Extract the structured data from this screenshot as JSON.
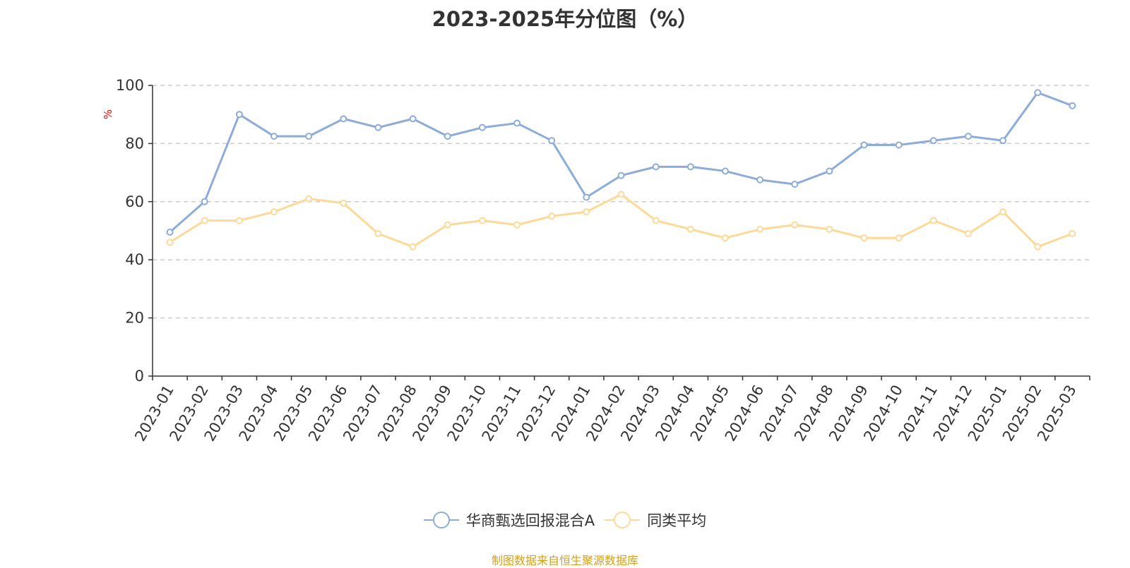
{
  "chart_data": {
    "type": "line",
    "title": "2023-2025年分位图（%）",
    "ylabel": "%",
    "ylim": [
      0,
      100
    ],
    "yticks": [
      "0",
      "20",
      "40",
      "60",
      "80",
      "100"
    ],
    "grid": true,
    "legend_position": "bottom",
    "categories": [
      "2023-01",
      "2023-02",
      "2023-03",
      "2023-04",
      "2023-05",
      "2023-06",
      "2023-07",
      "2023-08",
      "2023-09",
      "2023-10",
      "2023-11",
      "2023-12",
      "2024-01",
      "2024-02",
      "2024-03",
      "2024-04",
      "2024-05",
      "2024-06",
      "2024-07",
      "2024-08",
      "2024-09",
      "2024-10",
      "2024-11",
      "2024-12",
      "2025-01",
      "2025-02",
      "2025-03"
    ],
    "series": [
      {
        "name": "华商甄选回报混合A",
        "color": "#8eacd8",
        "values": [
          49.5,
          60,
          90,
          82.5,
          82.5,
          88.5,
          85.5,
          88.5,
          82.5,
          85.5,
          87,
          81,
          61.5,
          69,
          72,
          72,
          70.5,
          67.5,
          66,
          70.5,
          79.5,
          79.5,
          81,
          82.5,
          81,
          97.5,
          93
        ]
      },
      {
        "name": "同类平均",
        "color": "#fdd998",
        "values": [
          46,
          53.5,
          53.5,
          56.5,
          61,
          59.5,
          49,
          44.5,
          52,
          53.5,
          52,
          55,
          56.5,
          62.5,
          53.5,
          50.5,
          47.5,
          50.5,
          52,
          50.5,
          47.5,
          47.5,
          53.5,
          49,
          56.5,
          44.5,
          49
        ]
      }
    ]
  },
  "footer": {
    "source": "制图数据来自恒生聚源数据库"
  }
}
